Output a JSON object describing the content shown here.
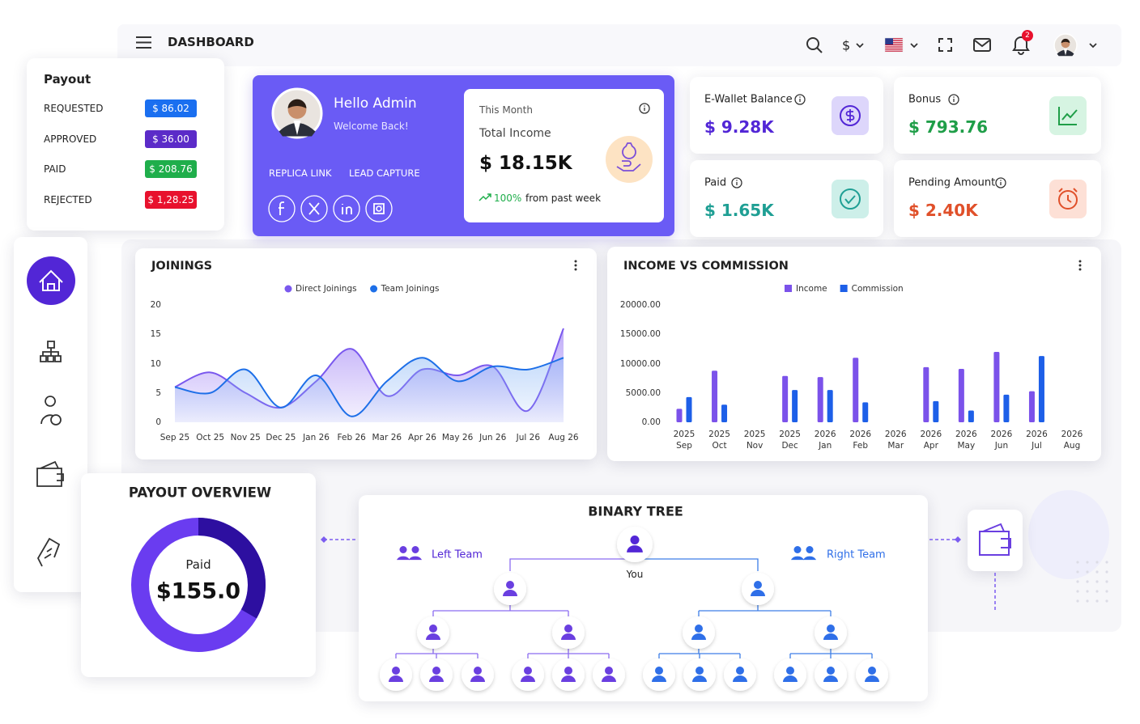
{
  "header": {
    "title": "DASHBOARD",
    "currency": "$",
    "notifications": 2
  },
  "payout": {
    "title": "Payout",
    "rows": [
      {
        "label": "REQUESTED",
        "amount": "$ 86.02",
        "color": "#1a6ff0"
      },
      {
        "label": "APPROVED",
        "amount": "$ 36.00",
        "color": "#5b2bc8"
      },
      {
        "label": "PAID",
        "amount": "$ 208.76",
        "color": "#1fae4b"
      },
      {
        "label": "REJECTED",
        "amount": "$ 1,28.25",
        "color": "#e8112d"
      }
    ]
  },
  "profile": {
    "greeting": "Hello Admin",
    "subtitle": "Welcome Back!",
    "links": [
      "REPLICA LINK",
      "LEAD CAPTURE"
    ]
  },
  "income_card": {
    "period": "This Month",
    "label": "Total Income",
    "amount": "$ 18.15K",
    "change": "100%",
    "change_note": "from past week"
  },
  "stats": [
    {
      "label": "E-Wallet Balance",
      "amount": "$ 9.28K",
      "color": "#5226d6",
      "tint": "#ddd6fb"
    },
    {
      "label": "Bonus",
      "amount": "$ 793.76",
      "color": "#1f9e48",
      "tint": "#d6f4e2"
    },
    {
      "label": "Paid",
      "amount": "$ 1.65K",
      "color": "#1f9f94",
      "tint": "#cdefe9"
    },
    {
      "label": "Pending Amount",
      "amount": "$ 2.40K",
      "color": "#e0502a",
      "tint": "#fde0d6"
    }
  ],
  "chart_data": [
    {
      "type": "area",
      "title": "JOININGS",
      "categories": [
        "Sep 25",
        "Oct 25",
        "Nov 25",
        "Dec 25",
        "Jan 26",
        "Feb 26",
        "Mar 26",
        "Apr 26",
        "May 26",
        "Jun 26",
        "Jul 26",
        "Aug 26"
      ],
      "series": [
        {
          "name": "Direct Joinings",
          "color": "#7a58ee",
          "values": [
            6,
            8.5,
            5,
            2.5,
            7,
            12.5,
            4.5,
            9,
            8,
            9.5,
            2,
            16
          ]
        },
        {
          "name": "Team Joinings",
          "color": "#1d6fe8",
          "values": [
            6,
            5,
            9,
            2.5,
            8,
            1,
            7,
            11,
            7,
            9.5,
            9,
            11
          ]
        }
      ],
      "ylim": [
        0,
        20
      ],
      "yticks": [
        0,
        5,
        10,
        15,
        20
      ],
      "grid": false
    },
    {
      "type": "bar",
      "title": "INCOME VS COMMISSION",
      "categories": [
        "2025 Sep",
        "2025 Oct",
        "2025 Nov",
        "2025 Dec",
        "2026 Jan",
        "2026 Feb",
        "2026 Mar",
        "2026 Apr",
        "2026 May",
        "2026 Jun",
        "2026 Jul",
        "2026 Aug"
      ],
      "series": [
        {
          "name": "Income",
          "color": "#7b52ea",
          "values": [
            2300,
            8800,
            0,
            7900,
            7700,
            11000,
            0,
            9400,
            9100,
            12000,
            5300,
            0
          ]
        },
        {
          "name": "Commission",
          "color": "#1d5fe8",
          "values": [
            4300,
            3000,
            0,
            5500,
            5500,
            3400,
            0,
            3600,
            2000,
            4700,
            11300,
            0
          ]
        }
      ],
      "ylim": [
        0,
        20000
      ],
      "yticks": [
        {
          "value": 0,
          "label": "0.00"
        },
        {
          "value": 5000,
          "label": "5000.00"
        },
        {
          "value": 10000,
          "label": "10000.00"
        },
        {
          "value": 15000,
          "label": "15000.00"
        },
        {
          "value": 20000,
          "label": "20000.00"
        }
      ],
      "grid": false
    }
  ],
  "payout_overview": {
    "title": "PAYOUT OVERVIEW",
    "label": "Paid",
    "amount": "$155.0"
  },
  "binary_tree": {
    "title": "BINARY TREE",
    "left_label": "Left Team",
    "right_label": "Right Team",
    "root_label": "You"
  }
}
